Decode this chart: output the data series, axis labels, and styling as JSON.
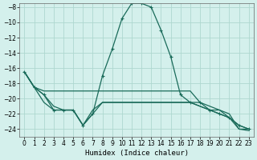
{
  "title": "",
  "xlabel": "Humidex (Indice chaleur)",
  "ylabel": "",
  "bg_color": "#d4f0ec",
  "grid_color": "#aed8d0",
  "line_color": "#1a6b5a",
  "xlim": [
    -0.5,
    23.5
  ],
  "ylim": [
    -25,
    -7.5
  ],
  "xticks": [
    0,
    1,
    2,
    3,
    4,
    5,
    6,
    7,
    8,
    9,
    10,
    11,
    12,
    13,
    14,
    15,
    16,
    17,
    18,
    19,
    20,
    21,
    22,
    23
  ],
  "yticks": [
    -8,
    -10,
    -12,
    -14,
    -16,
    -18,
    -20,
    -22,
    -24
  ],
  "line1": {
    "x": [
      0,
      1,
      2,
      3,
      4,
      5,
      6,
      7,
      8,
      9,
      10,
      11,
      12,
      13,
      14,
      15,
      16,
      17,
      18,
      19,
      20,
      21,
      22,
      23
    ],
    "y": [
      -16.5,
      -18.5,
      -19.5,
      -21.5,
      -21.5,
      -21.5,
      -23.5,
      -22.0,
      -17.0,
      -13.5,
      -9.5,
      -7.5,
      -7.5,
      -8.0,
      -11.0,
      -14.5,
      -19.5,
      -20.5,
      -20.5,
      -21.5,
      -22.0,
      -22.5,
      -23.5,
      -24.0
    ]
  },
  "line2": {
    "x": [
      0,
      1,
      2,
      3,
      4,
      5,
      6,
      7,
      8,
      9,
      10,
      11,
      12,
      13,
      14,
      15,
      16,
      17,
      18,
      19,
      20,
      21,
      22,
      23
    ],
    "y": [
      -16.5,
      -18.5,
      -19.0,
      -19.0,
      -19.0,
      -19.0,
      -19.0,
      -19.0,
      -19.0,
      -19.0,
      -19.0,
      -19.0,
      -19.0,
      -19.0,
      -19.0,
      -19.0,
      -19.0,
      -19.0,
      -20.5,
      -21.0,
      -21.5,
      -22.0,
      -24.0,
      -24.0
    ]
  },
  "line3": {
    "x": [
      0,
      1,
      2,
      3,
      4,
      5,
      6,
      7,
      8,
      9,
      10,
      11,
      12,
      13,
      14,
      15,
      16,
      17,
      18,
      19,
      20,
      21,
      22,
      23
    ],
    "y": [
      -16.5,
      -18.5,
      -20.5,
      -21.5,
      -21.5,
      -21.5,
      -23.5,
      -21.5,
      -20.5,
      -20.5,
      -20.5,
      -20.5,
      -20.5,
      -20.5,
      -20.5,
      -20.5,
      -20.5,
      -20.5,
      -21.0,
      -21.5,
      -21.5,
      -22.5,
      -24.0,
      -24.2
    ]
  },
  "line4": {
    "x": [
      0,
      1,
      2,
      3,
      4,
      5,
      6,
      7,
      8,
      9,
      10,
      11,
      12,
      13,
      14,
      15,
      16,
      17,
      18,
      19,
      20,
      21,
      22,
      23
    ],
    "y": [
      -16.5,
      -18.5,
      -19.5,
      -21.0,
      -21.5,
      -21.5,
      -23.5,
      -22.0,
      -20.5,
      -20.5,
      -20.5,
      -20.5,
      -20.5,
      -20.5,
      -20.5,
      -20.5,
      -20.5,
      -20.5,
      -21.0,
      -21.5,
      -22.0,
      -22.5,
      -23.5,
      -24.0
    ]
  }
}
